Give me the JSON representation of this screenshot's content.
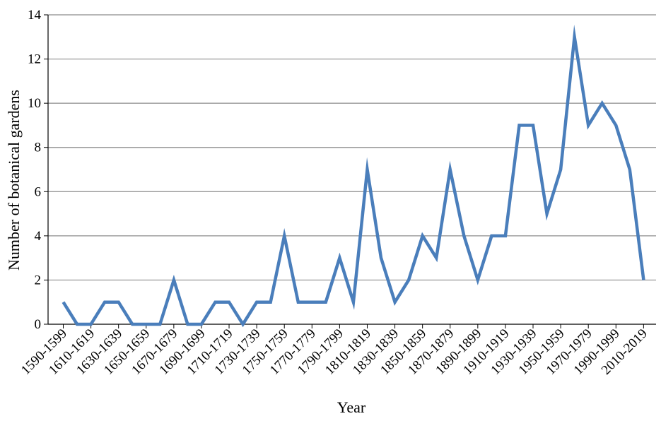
{
  "chart_data": {
    "type": "line",
    "title": "",
    "xlabel": "Year",
    "ylabel": "Number of botanical gardens",
    "ylim": [
      0,
      14
    ],
    "yticks": [
      0,
      2,
      4,
      6,
      8,
      10,
      12,
      14
    ],
    "grid": "horizontal",
    "line_color": "#4a7ebb",
    "x": [
      "1590-1599",
      "1600-1609",
      "1610-1619",
      "1620-1629",
      "1630-1639",
      "1640-1649",
      "1650-1659",
      "1660-1669",
      "1670-1679",
      "1680-1689",
      "1690-1699",
      "1700-1709",
      "1710-1719",
      "1720-1729",
      "1730-1739",
      "1740-1749",
      "1750-1759",
      "1760-1769",
      "1770-1779",
      "1780-1789",
      "1790-1799",
      "1800-1809",
      "1810-1819",
      "1820-1829",
      "1830-1839",
      "1840-1849",
      "1850-1859",
      "1860-1869",
      "1870-1879",
      "1880-1889",
      "1890-1899",
      "1900-1909",
      "1910-1919",
      "1920-1929",
      "1930-1939",
      "1940-1949",
      "1950-1959",
      "1960-1969",
      "1970-1979",
      "1980-1989",
      "1990-1999",
      "2000-2009",
      "2010-2019"
    ],
    "shown_tick_labels": [
      "1590-1599",
      "1610-1619",
      "1630-1639",
      "1650-1659",
      "1670-1679",
      "1690-1699",
      "1710-1719",
      "1730-1739",
      "1750-1759",
      "1770-1779",
      "1790-1799",
      "1810-1819",
      "1830-1839",
      "1850-1859",
      "1870-1879",
      "1890-1899",
      "1910-1919",
      "1930-1939",
      "1950-1959",
      "1970-1979",
      "1990-1999",
      "2010-2019"
    ],
    "series": [
      {
        "values": [
          1,
          0,
          0,
          1,
          1,
          0,
          0,
          0,
          2,
          0,
          0,
          1,
          1,
          0,
          1,
          1,
          4,
          1,
          1,
          1,
          3,
          1,
          7,
          3,
          1,
          2,
          4,
          3,
          7,
          4,
          2,
          4,
          4,
          9,
          9,
          5,
          7,
          13,
          9,
          10,
          9,
          7,
          2
        ]
      }
    ]
  }
}
